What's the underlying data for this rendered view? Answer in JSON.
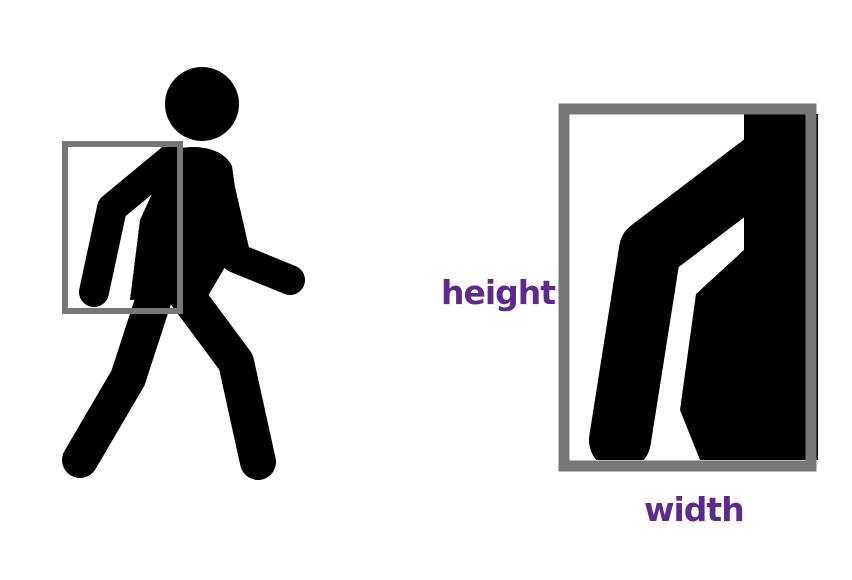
{
  "labels": {
    "height": "height",
    "width": "width"
  },
  "colors": {
    "figure": "#000000",
    "box": "#777777",
    "label": "#5b2a8c",
    "background": "#ffffff"
  },
  "icons": {
    "figure": "pedestrian-icon",
    "crop": "bounding-box-crop"
  }
}
